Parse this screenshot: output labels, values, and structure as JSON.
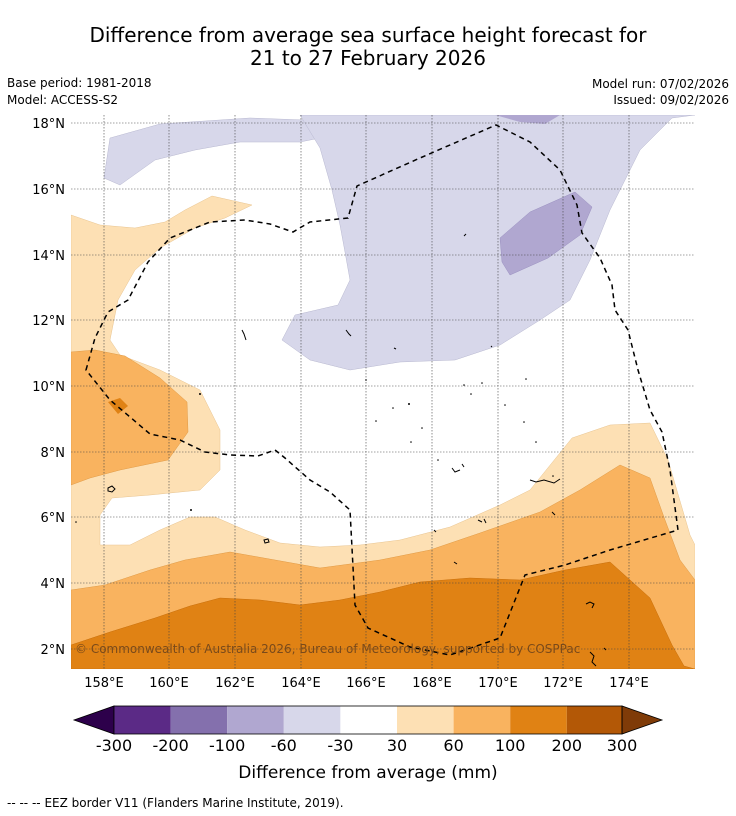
{
  "title_line1": "Difference from average sea surface height forecast for",
  "title_line2": "21 to 27 February 2026",
  "base_period": "Base period: 1981-2018",
  "model": "Model: ACCESS-S2",
  "model_run": "Model run: 07/02/2026",
  "issued": "Issued: 09/02/2026",
  "copyright": "© Commonwealth of Australia 2026, Bureau of Meteorology, supported by COSPPac",
  "lon_ticks": [
    "158°E",
    "160°E",
    "162°E",
    "164°E",
    "166°E",
    "168°E",
    "170°E",
    "172°E",
    "174°E"
  ],
  "lat_ticks": [
    "18°N",
    "16°N",
    "14°N",
    "12°N",
    "10°N",
    "8°N",
    "6°N",
    "4°N",
    "2°N"
  ],
  "colorbar": {
    "label": "Difference from average (mm)",
    "ticks": [
      "-300",
      "-200",
      "-100",
      "-60",
      "-30",
      "30",
      "60",
      "100",
      "200",
      "300"
    ],
    "colors": [
      "#5b2a86",
      "#8470ad",
      "#b0a7d0",
      "#d7d7ea",
      "#ffffff",
      "#fde0b4",
      "#f9b35f",
      "#e08214",
      "#b35806"
    ],
    "extend_low_color": "#2d004b",
    "extend_high_color": "#7f3b08"
  },
  "legend_text": "EEZ border V11 (Flanders Marine Institute, 2019).",
  "legend_dashes": "-- -- --"
}
